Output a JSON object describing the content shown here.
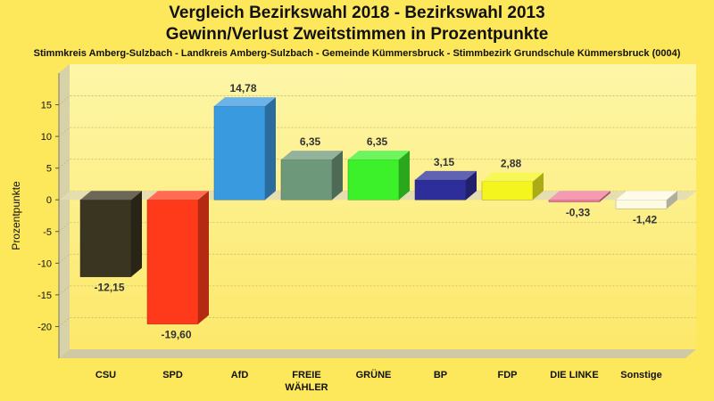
{
  "title_line1": "Vergleich Bezirkswahl 2018 - Bezirkswahl 2013",
  "title_line2": "Gewinn/Verlust Zweitstimmen in Prozentpunkte",
  "subtitle": "Stimmkreis Amberg-Sulzbach - Landkreis Amberg-Sulzbach - Gemeinde Kümmersbruck - Stimmbezirk Grundschule Kümmersbruck (0004)",
  "colors": {
    "background": "#fde75a",
    "plot_background": "#fdf49a",
    "grid": "#c8bb6a"
  },
  "chart_data": {
    "type": "bar",
    "title": "Vergleich Bezirkswahl 2018 - Bezirkswahl 2013",
    "subtitle": "Gewinn/Verlust Zweitstimmen in Prozentpunkte",
    "xlabel": "",
    "ylabel": "Prozentpunkte",
    "ylim": [
      -25,
      20
    ],
    "yticks": [
      15,
      10,
      5,
      0,
      -5,
      -10,
      -15,
      -20
    ],
    "grid": true,
    "categories": [
      {
        "name": "CSU",
        "lines": [
          "CSU"
        ],
        "value": -12.15,
        "label": "-12,15",
        "color": "#3a3520"
      },
      {
        "name": "SPD",
        "lines": [
          "SPD"
        ],
        "value": -19.6,
        "label": "-19,60",
        "color": "#ff3a1a"
      },
      {
        "name": "AfD",
        "lines": [
          "AfD"
        ],
        "value": 14.78,
        "label": "14,78",
        "color": "#3a9ae0"
      },
      {
        "name": "FREIE WÄHLER",
        "lines": [
          "FREIE",
          "WÄHLER"
        ],
        "value": 6.35,
        "label": "6,35",
        "color": "#6e987a"
      },
      {
        "name": "GRÜNE",
        "lines": [
          "GRÜNE"
        ],
        "value": 6.35,
        "label": "6,35",
        "color": "#3cf02a"
      },
      {
        "name": "BP",
        "lines": [
          "BP"
        ],
        "value": 3.15,
        "label": "3,15",
        "color": "#2e2e9a"
      },
      {
        "name": "FDP",
        "lines": [
          "FDP"
        ],
        "value": 2.88,
        "label": "2,88",
        "color": "#f4f41e"
      },
      {
        "name": "DIE LINKE",
        "lines": [
          "DIE LINKE"
        ],
        "value": -0.33,
        "label": "-0,33",
        "color": "#f07a9a"
      },
      {
        "name": "Sonstige",
        "lines": [
          "Sonstige"
        ],
        "value": -1.42,
        "label": "-1,42",
        "color": "#fdfbe2"
      }
    ]
  }
}
